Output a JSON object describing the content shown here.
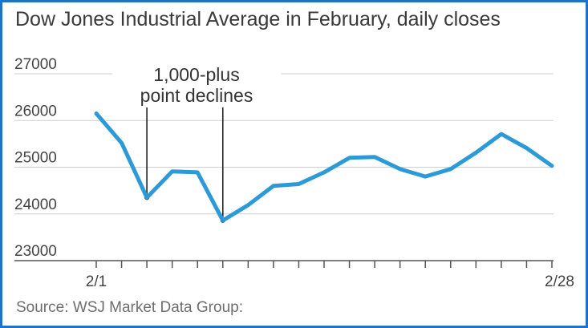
{
  "chart_data": {
    "type": "line",
    "title": "Dow Jones Industrial Average in February, daily closes",
    "x": [
      "2/1",
      "2/2",
      "2/5",
      "2/6",
      "2/7",
      "2/8",
      "2/9",
      "2/12",
      "2/13",
      "2/14",
      "2/15",
      "2/16",
      "2/20",
      "2/21",
      "2/22",
      "2/23",
      "2/26",
      "2/27",
      "2/28"
    ],
    "series": [
      {
        "values": [
          26150,
          25520,
          24350,
          24910,
          24890,
          23860,
          24190,
          24600,
          24640,
          24890,
          25200,
          25220,
          24960,
          24800,
          24960,
          25310,
          25710,
          25410,
          25030
        ]
      }
    ],
    "y_ticks": [
      23000,
      24000,
      25000,
      26000,
      27000
    ],
    "x_tick_labels": [
      {
        "label": "2/1",
        "index": 0
      },
      {
        "label": "2/28",
        "index": 18
      }
    ],
    "ylim": [
      23000,
      27000
    ],
    "grid": "horizontal",
    "line_color": "#2b9ad6",
    "annotation": {
      "lines": [
        "1,000-plus",
        "point declines"
      ],
      "points": [
        2,
        5
      ]
    },
    "source": "Source: WSJ Market Data Group:"
  }
}
